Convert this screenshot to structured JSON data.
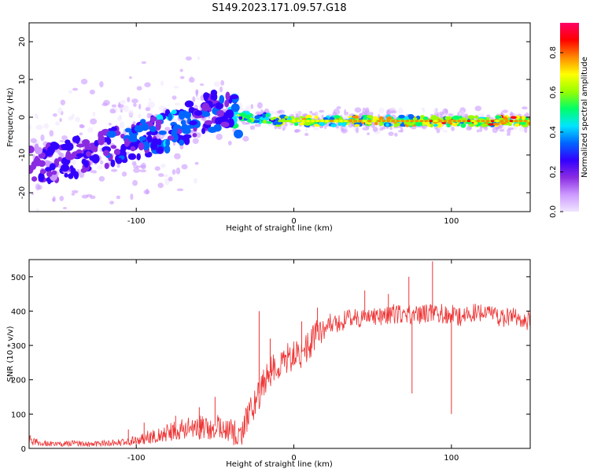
{
  "figure": {
    "title": "S149.2023.171.09.57.G18"
  },
  "chart_data": [
    {
      "type": "heatmap",
      "xlabel": "Height of straight line (km)",
      "ylabel": "Frequency (Hz)",
      "xlim": [
        -168,
        150
      ],
      "ylim": [
        -25,
        25
      ],
      "xticks": [
        -100,
        0,
        100
      ],
      "xtick_labels": [
        "-100",
        "0",
        "100"
      ],
      "yticks": [
        -20,
        -10,
        0,
        10,
        20
      ],
      "ytick_labels": [
        "-20",
        "-10",
        "0",
        "10",
        "20"
      ],
      "colorbar": {
        "label": "Normalized spectral amplitude",
        "range": [
          0,
          0.95
        ],
        "ticks": [
          0.0,
          0.2,
          0.4,
          0.6,
          0.8
        ],
        "tick_labels": [
          "0.0",
          "0.2",
          "0.4",
          "0.6",
          "0.8"
        ],
        "colormap": [
          "#f0e6ff",
          "#cc99ff",
          "#8a2be2",
          "#3300ff",
          "#0066ff",
          "#00e5ff",
          "#00ff66",
          "#99ff00",
          "#ffff00",
          "#ff8800",
          "#ff0000",
          "#ff0066"
        ]
      },
      "ridge": {
        "x": [
          -165,
          -150,
          -130,
          -110,
          -90,
          -75,
          -60,
          -50,
          -40,
          -33,
          -25,
          -10,
          0,
          50,
          100,
          148
        ],
        "frequency": [
          -13,
          -12,
          -10,
          -7,
          -5,
          -3,
          0,
          2,
          1,
          0,
          0,
          -1,
          -1,
          -1,
          -1,
          -1
        ],
        "peak_amplitude": [
          0.25,
          0.3,
          0.3,
          0.35,
          0.4,
          0.4,
          0.35,
          0.35,
          0.4,
          0.7,
          0.6,
          0.65,
          0.75,
          0.8,
          0.85,
          0.85
        ]
      }
    },
    {
      "type": "line",
      "xlabel": "Height of straight line (km)",
      "ylabel": "SNR (10 * v/v)",
      "xlim": [
        -168,
        150
      ],
      "ylim": [
        0,
        550
      ],
      "xticks": [
        -100,
        0,
        100
      ],
      "xtick_labels": [
        "-100",
        "0",
        "100"
      ],
      "yticks": [
        0,
        100,
        200,
        300,
        400,
        500
      ],
      "ytick_labels": [
        "0",
        "100",
        "200",
        "300",
        "400",
        "500"
      ],
      "series": [
        {
          "color": "#ee3333",
          "x": [
            -168,
            -160,
            -150,
            -140,
            -130,
            -120,
            -110,
            -100,
            -90,
            -80,
            -70,
            -60,
            -50,
            -40,
            -35,
            -30,
            -25,
            -20,
            -15,
            -10,
            -5,
            0,
            5,
            10,
            15,
            20,
            30,
            40,
            50,
            60,
            70,
            80,
            90,
            100,
            105,
            110,
            120,
            130,
            140,
            150
          ],
          "y": [
            25,
            15,
            12,
            15,
            12,
            15,
            18,
            25,
            35,
            45,
            55,
            60,
            65,
            50,
            30,
            80,
            130,
            180,
            220,
            245,
            260,
            270,
            280,
            300,
            340,
            360,
            370,
            380,
            385,
            390,
            395,
            390,
            395,
            390,
            385,
            390,
            395,
            385,
            380,
            370
          ]
        }
      ],
      "spikes": [
        {
          "x": -105,
          "y": 55
        },
        {
          "x": -95,
          "y": 75
        },
        {
          "x": -75,
          "y": 95
        },
        {
          "x": -60,
          "y": 120
        },
        {
          "x": -50,
          "y": 150
        },
        {
          "x": -22,
          "y": 400
        },
        {
          "x": -15,
          "y": 320
        },
        {
          "x": 5,
          "y": 370
        },
        {
          "x": 15,
          "y": 410
        },
        {
          "x": 45,
          "y": 460
        },
        {
          "x": 60,
          "y": 450
        },
        {
          "x": 73,
          "y": 500
        },
        {
          "x": 75,
          "y": 160
        },
        {
          "x": 88,
          "y": 545
        },
        {
          "x": 100,
          "y": 100
        }
      ]
    }
  ]
}
